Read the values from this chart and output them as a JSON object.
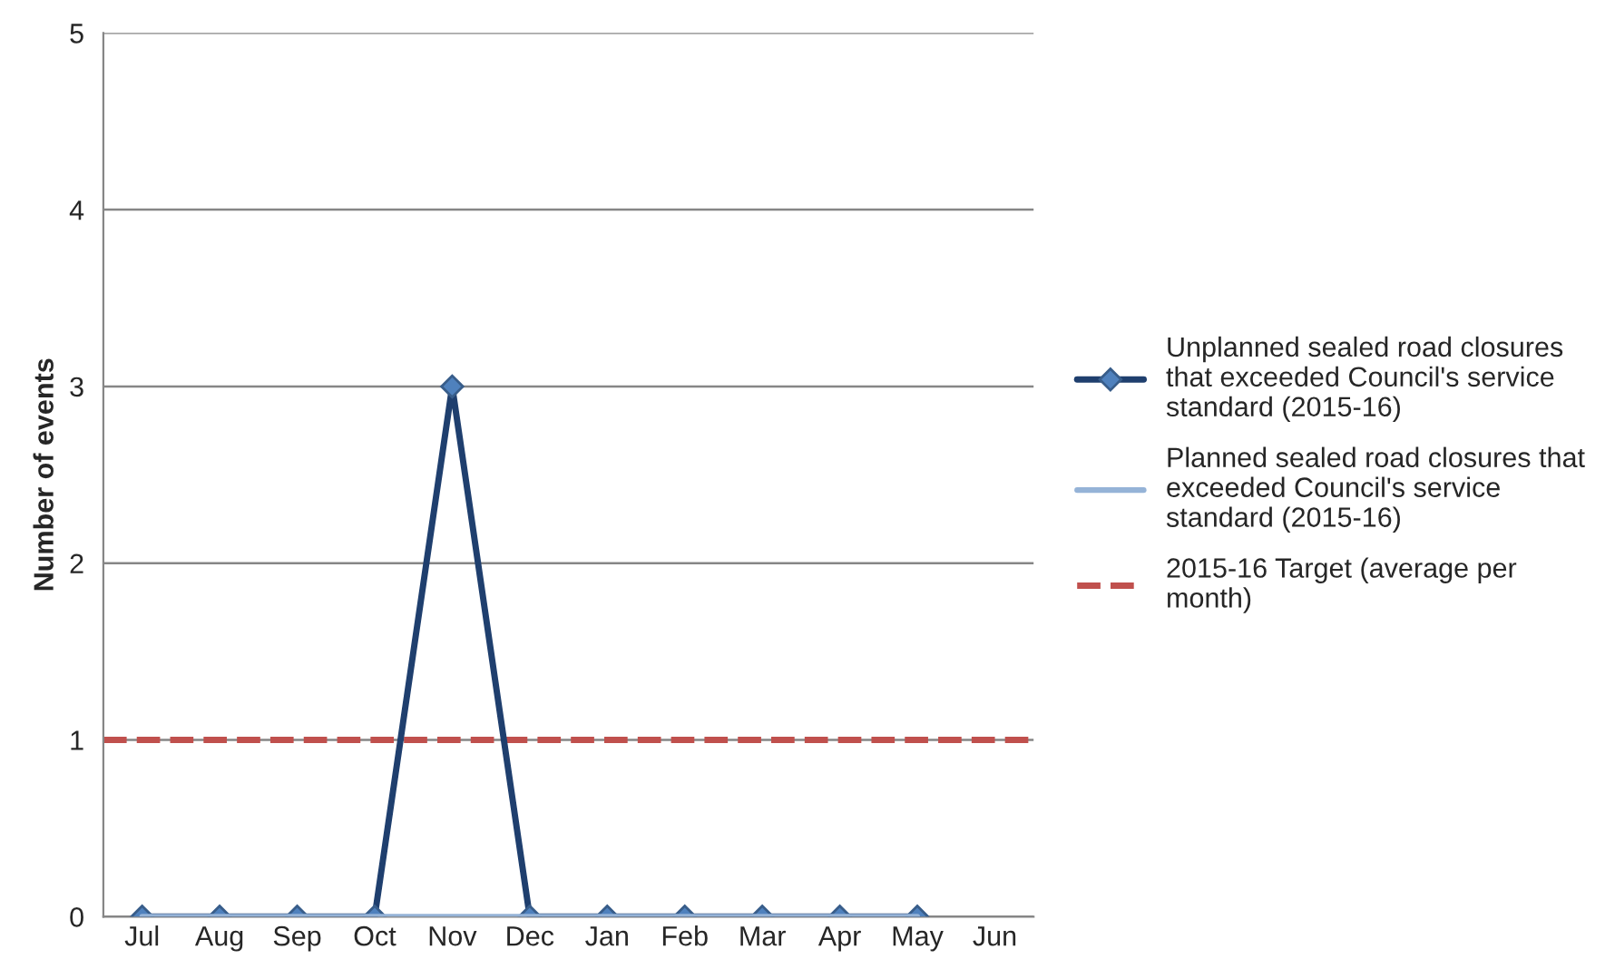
{
  "chart_data": {
    "type": "line",
    "ylabel": "Number of events",
    "categories": [
      "Jul",
      "Aug",
      "Sep",
      "Oct",
      "Nov",
      "Dec",
      "Jan",
      "Feb",
      "Mar",
      "Apr",
      "May",
      "Jun"
    ],
    "series": [
      {
        "name": "Unplanned sealed road closures that exceeded Council's service standard (2015-16)",
        "color": "#1f3f6e",
        "values": [
          0,
          0,
          0,
          0,
          3,
          0,
          0,
          0,
          0,
          0,
          0,
          null
        ],
        "marker": "diamond"
      },
      {
        "name": "Planned sealed road closures that exceeded Council's service standard (2015-16)",
        "color": "#95b3d7",
        "values": [
          0,
          0,
          0,
          0,
          0,
          0,
          0,
          0,
          0,
          0,
          0,
          null
        ],
        "marker": "none"
      }
    ],
    "ref_lines": [
      {
        "axis": "y",
        "value": 1,
        "label": "2015-16 Target (average per month)",
        "color": "#c0504d",
        "line_style": "dashed"
      }
    ],
    "ylim": [
      0,
      5
    ],
    "yticks": [
      0,
      1,
      2,
      3,
      4,
      5
    ],
    "grid": "y",
    "legend": "right",
    "line_style": "solid"
  }
}
